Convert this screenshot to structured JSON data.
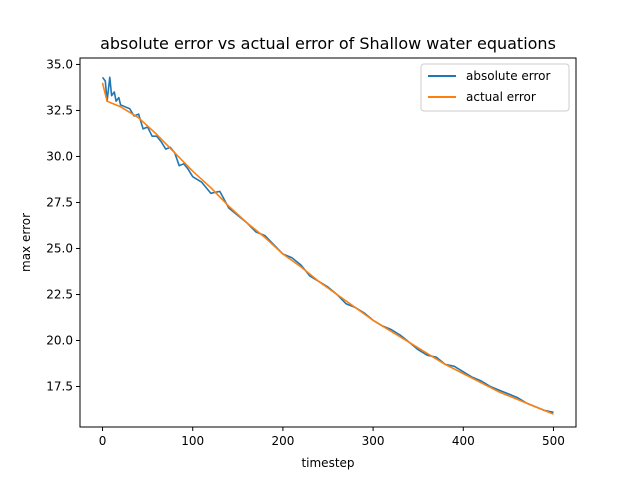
{
  "chart_data": {
    "type": "line",
    "title": "absolute error vs actual error of Shallow water equations",
    "xlabel": "timestep",
    "ylabel": "max error",
    "xlim": [
      -25,
      525
    ],
    "ylim": [
      15.3,
      35.35
    ],
    "xticks": [
      0,
      100,
      200,
      300,
      400,
      500
    ],
    "yticks": [
      17.5,
      20.0,
      22.5,
      25.0,
      27.5,
      30.0,
      32.5,
      35.0
    ],
    "xtick_labels": [
      "0",
      "100",
      "200",
      "300",
      "400",
      "500"
    ],
    "ytick_labels": [
      "17.5",
      "20.0",
      "22.5",
      "25.0",
      "27.5",
      "30.0",
      "32.5",
      "35.0"
    ],
    "grid": false,
    "legend": {
      "position": "top-right"
    },
    "series": [
      {
        "name": "absolute error",
        "color": "#1f77b4",
        "x": [
          0,
          3,
          5,
          8,
          10,
          13,
          15,
          18,
          20,
          25,
          30,
          35,
          40,
          45,
          50,
          55,
          60,
          65,
          70,
          75,
          80,
          85,
          90,
          95,
          100,
          110,
          120,
          130,
          140,
          150,
          160,
          170,
          180,
          190,
          200,
          210,
          220,
          230,
          240,
          250,
          260,
          270,
          280,
          290,
          300,
          310,
          320,
          330,
          340,
          350,
          360,
          370,
          380,
          390,
          400,
          410,
          420,
          430,
          440,
          450,
          460,
          470,
          480,
          490,
          500
        ],
        "y": [
          34.3,
          34.1,
          33.0,
          34.3,
          33.3,
          33.5,
          33.0,
          33.2,
          32.8,
          32.7,
          32.6,
          32.2,
          32.3,
          31.5,
          31.6,
          31.1,
          31.1,
          30.8,
          30.4,
          30.5,
          30.2,
          29.5,
          29.6,
          29.3,
          28.9,
          28.6,
          28.0,
          28.1,
          27.2,
          26.8,
          26.4,
          25.9,
          25.7,
          25.2,
          24.7,
          24.5,
          24.1,
          23.5,
          23.2,
          22.9,
          22.5,
          22.0,
          21.8,
          21.5,
          21.1,
          20.8,
          20.6,
          20.3,
          19.9,
          19.5,
          19.2,
          19.1,
          18.7,
          18.6,
          18.3,
          18.0,
          17.8,
          17.5,
          17.3,
          17.1,
          16.9,
          16.6,
          16.4,
          16.2,
          16.1
        ]
      },
      {
        "name": "actual error",
        "color": "#ff7f0e",
        "x": [
          0,
          2,
          5,
          10,
          20,
          40,
          60,
          80,
          100,
          120,
          140,
          160,
          180,
          200,
          220,
          240,
          260,
          280,
          300,
          320,
          340,
          360,
          380,
          400,
          420,
          440,
          460,
          480,
          500
        ],
        "y": [
          34.0,
          33.6,
          33.0,
          32.9,
          32.7,
          32.1,
          31.2,
          30.2,
          29.2,
          28.3,
          27.3,
          26.4,
          25.6,
          24.7,
          24.0,
          23.2,
          22.5,
          21.8,
          21.1,
          20.5,
          19.9,
          19.3,
          18.7,
          18.2,
          17.7,
          17.2,
          16.8,
          16.4,
          16.0
        ]
      }
    ]
  }
}
